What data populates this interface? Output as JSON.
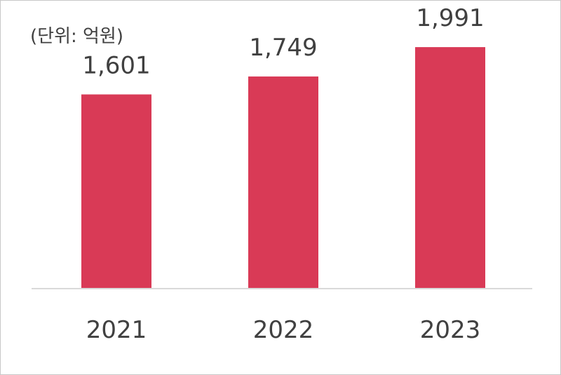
{
  "chart_data": {
    "type": "bar",
    "unit": "(단위: 억원)",
    "categories": [
      "2021",
      "2022",
      "2023"
    ],
    "values": [
      1601,
      1749,
      1991
    ],
    "value_labels": [
      "1,601",
      "1,749",
      "1,991"
    ],
    "ylim": [
      0,
      2200
    ],
    "bar_color": "#d93a56",
    "axis_color": "#d9d9d9",
    "grid": false,
    "legend": "none"
  }
}
